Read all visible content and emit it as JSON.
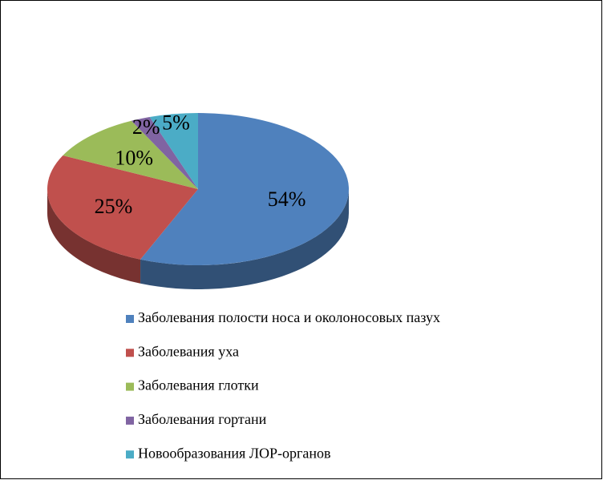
{
  "chart_data": {
    "type": "pie",
    "three_d": true,
    "categories": [
      "Заболевания полости носа и околоносовых пазух",
      "Заболевания уха",
      "Заболевания глотки",
      "Заболевания гортани",
      "Новообразования ЛОР-органов"
    ],
    "values": [
      54,
      25,
      10,
      2,
      5
    ],
    "value_labels": [
      "54%",
      "25%",
      "10%",
      "2%",
      "5%"
    ],
    "colors": [
      "#4f81bd",
      "#c0504d",
      "#9bbb59",
      "#8064a2",
      "#4bacc6"
    ],
    "legend": "bottom"
  }
}
